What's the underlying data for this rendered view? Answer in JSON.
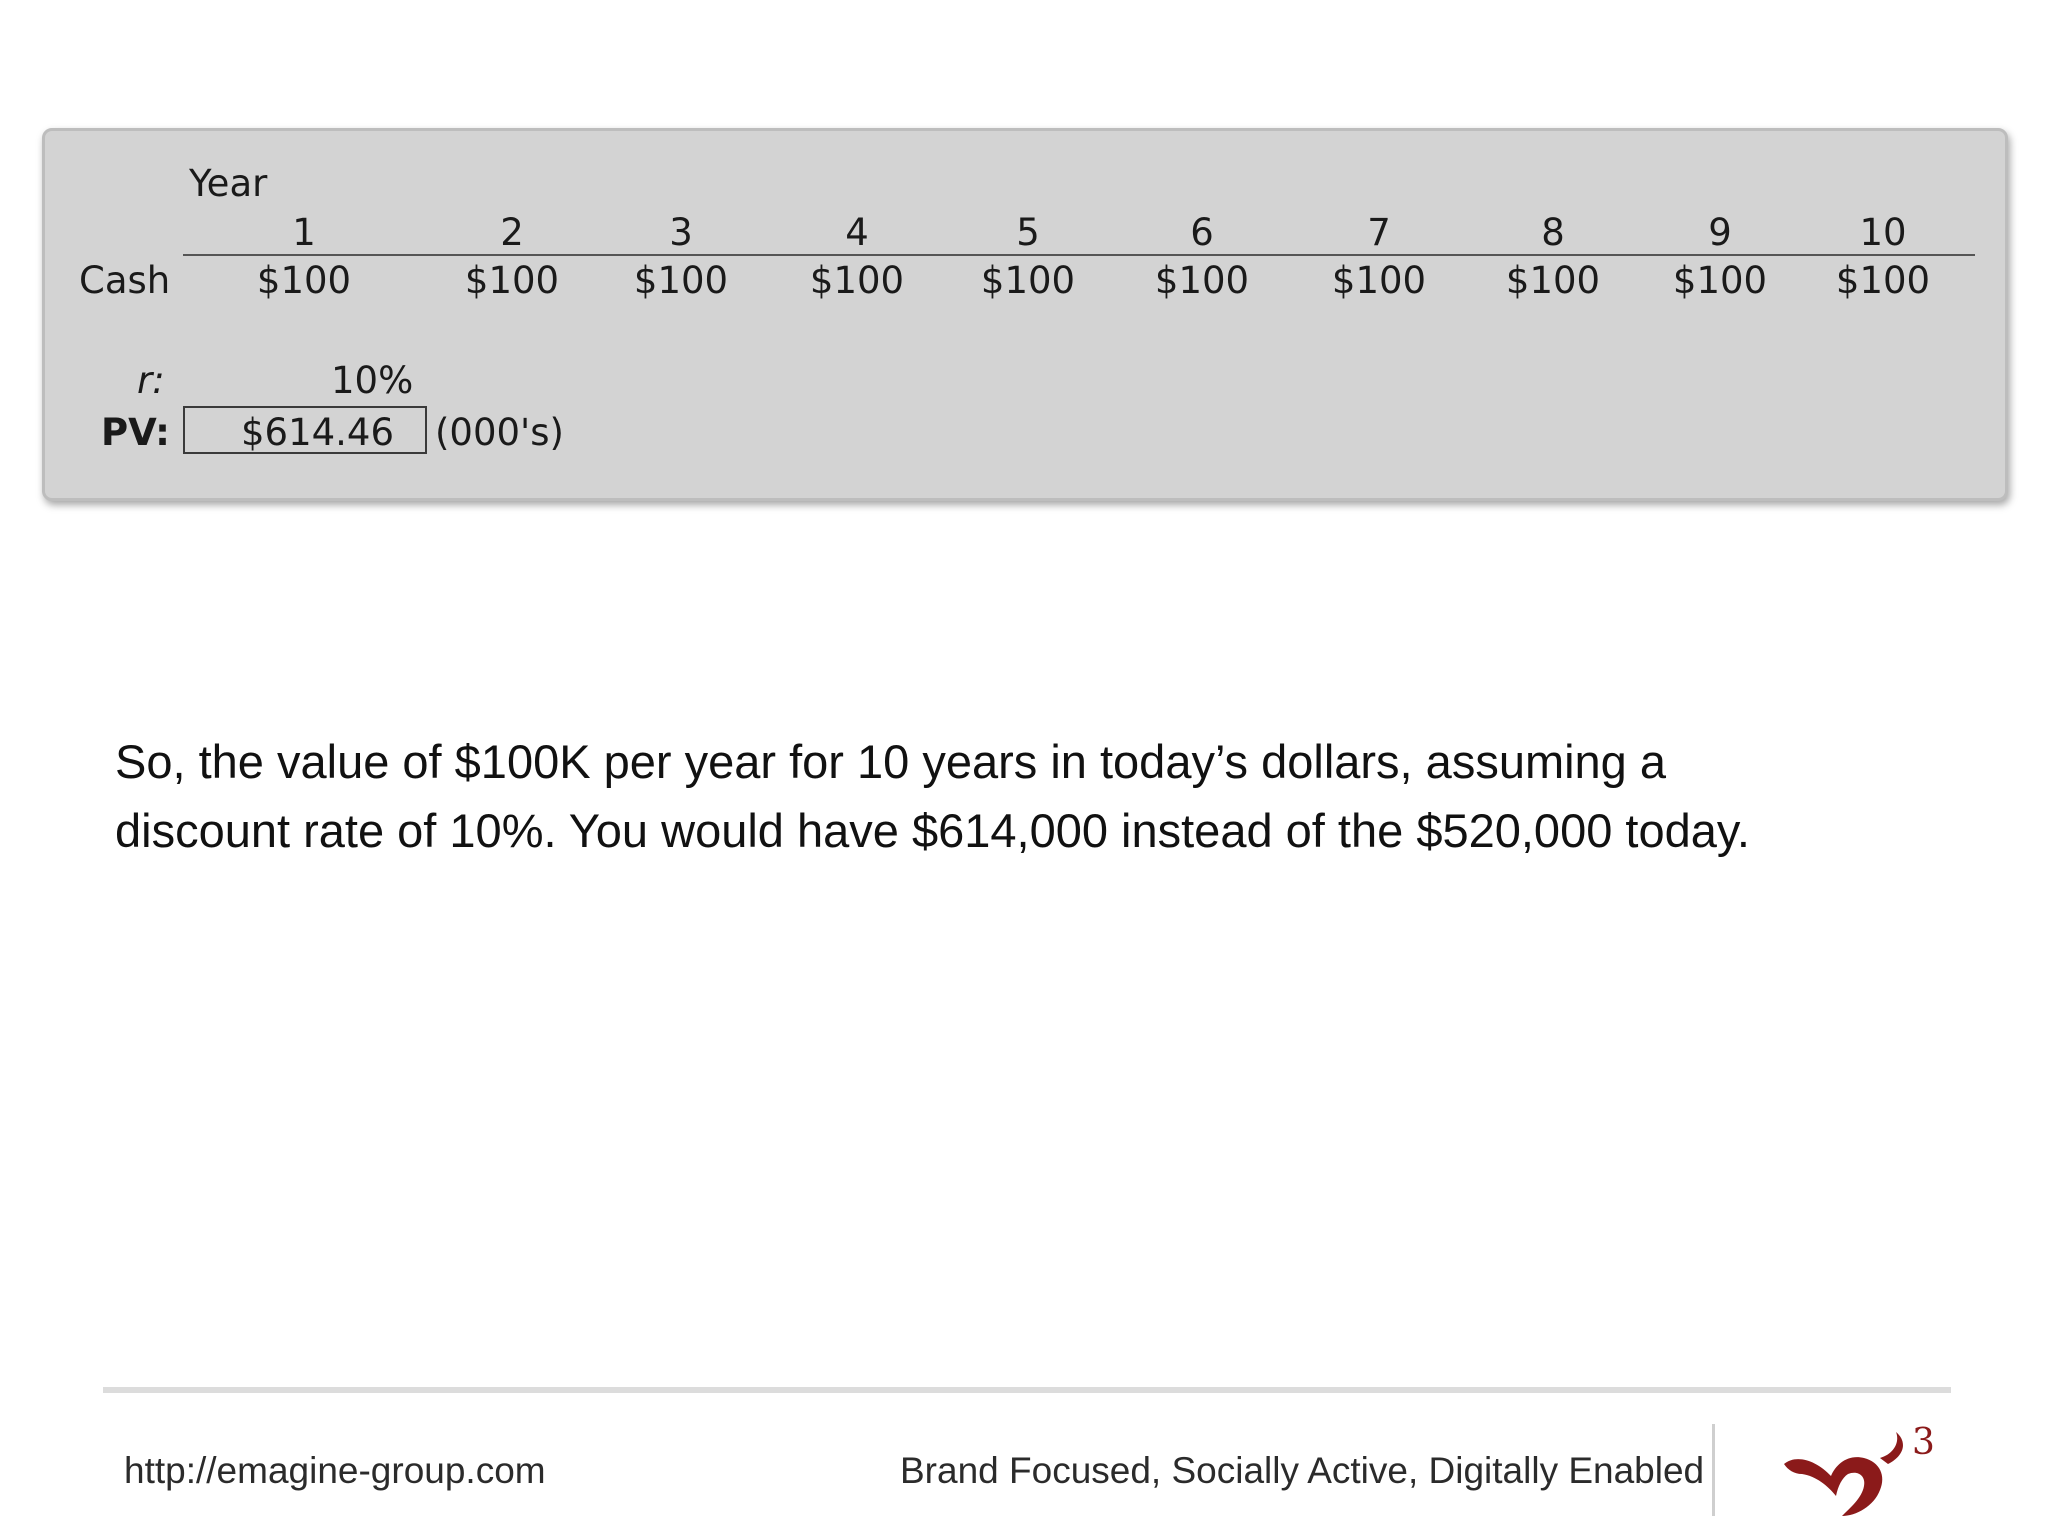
{
  "table": {
    "year_label": "Year",
    "years": [
      "1",
      "2",
      "3",
      "4",
      "5",
      "6",
      "7",
      "8",
      "9",
      "10"
    ],
    "cash_label": "Cash",
    "cash_values": [
      "$100",
      "$100",
      "$100",
      "$100",
      "$100",
      "$100",
      "$100",
      "$100",
      "$100",
      "$100"
    ],
    "rate_label": "r:",
    "rate_value": "10%",
    "pv_label": "PV:",
    "pv_value": "$614.46",
    "pv_unit": "(000's)"
  },
  "body": {
    "text": "So, the value of $100K per year for 10 years in today’s dollars, assuming a\ndiscount rate of 10%. You would have $614,000 instead of the $520,000 today."
  },
  "footer": {
    "url": "http://emagine-group.com",
    "tagline": "Brand Focused, Socially Active, Digitally Enabled",
    "logo_superscript": "3"
  },
  "colors": {
    "panel_background": "#d3d3d3",
    "logo_red": "#8b1a1a"
  },
  "icons": {
    "logo": "emagine-m3-logo"
  }
}
